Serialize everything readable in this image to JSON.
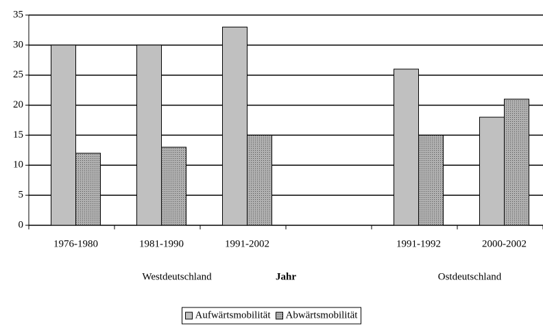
{
  "chart_data": {
    "type": "bar",
    "categories": [
      "1976-1980",
      "1981-1990",
      "1991-2002",
      null,
      "1991-1992",
      "2000-2002"
    ],
    "series": [
      {
        "name": "Aufwärtsmobilität",
        "color": "#c0c0c0",
        "values": [
          30,
          30,
          33,
          null,
          26,
          18
        ]
      },
      {
        "name": "Abwärtsmobilität",
        "color": "#b0b0b0",
        "values": [
          12,
          13,
          15,
          null,
          15,
          21
        ]
      }
    ],
    "group_labels": [
      "Westdeutschland",
      "Ostdeutschland"
    ],
    "x_label": "Jahr",
    "ylim": [
      0,
      35
    ],
    "yticks": [
      0,
      5,
      10,
      15,
      20,
      25,
      30,
      35
    ],
    "grid": true,
    "legend": "bottom"
  }
}
